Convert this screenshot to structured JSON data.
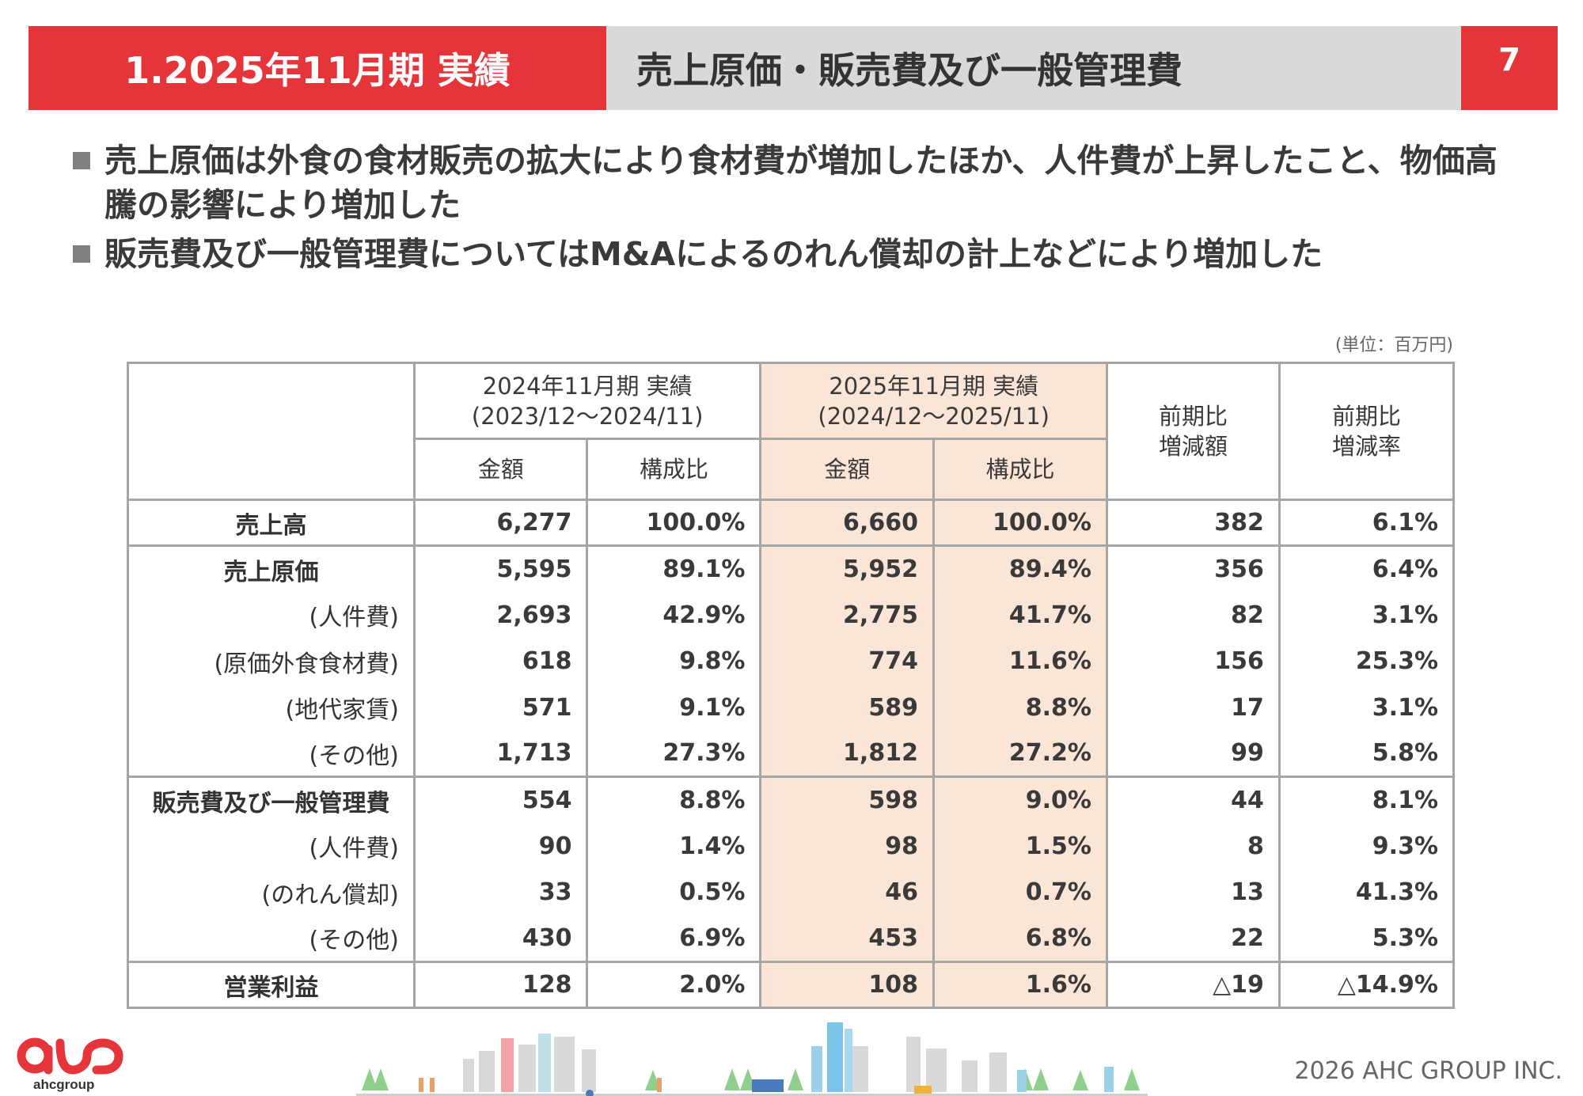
{
  "header": {
    "section": "1.2025年11月期 実績",
    "title": "売上原価・販売費及び一般管理費",
    "page_number": "7"
  },
  "bullets": [
    "売上原価は外食の食材販売の拡大により食材費が増加したほか、人件費が上昇したこと、物価高騰の影響により増加した",
    "販売費及び一般管理費についてはM&Aによるのれん償却の計上などにより増加した"
  ],
  "unit_note": "(単位：百万円)",
  "table": {
    "period_prev": {
      "line1": "2024年11月期 実績",
      "line2": "(2023/12～2024/11)"
    },
    "period_curr": {
      "line1": "2025年11月期 実績",
      "line2": "(2024/12～2025/11)"
    },
    "col_amount": "金額",
    "col_ratio": "構成比",
    "col_diff": {
      "line1": "前期比",
      "line2": "増減額"
    },
    "col_rate": {
      "line1": "前期比",
      "line2": "増減率"
    },
    "rows": [
      {
        "label": "売上高",
        "prev_amt": "6,277",
        "prev_ratio": "100.0%",
        "curr_amt": "6,660",
        "curr_ratio": "100.0%",
        "diff": "382",
        "rate": "6.1%"
      },
      {
        "label": "売上原価",
        "prev_amt": "5,595",
        "prev_ratio": "89.1%",
        "curr_amt": "5,952",
        "curr_ratio": "89.4%",
        "diff": "356",
        "rate": "6.4%"
      },
      {
        "label": "(人件費)",
        "prev_amt": "2,693",
        "prev_ratio": "42.9%",
        "curr_amt": "2,775",
        "curr_ratio": "41.7%",
        "diff": "82",
        "rate": "3.1%"
      },
      {
        "label": "(原価外食食材費)",
        "prev_amt": "618",
        "prev_ratio": "9.8%",
        "curr_amt": "774",
        "curr_ratio": "11.6%",
        "diff": "156",
        "rate": "25.3%"
      },
      {
        "label": "(地代家賃)",
        "prev_amt": "571",
        "prev_ratio": "9.1%",
        "curr_amt": "589",
        "curr_ratio": "8.8%",
        "diff": "17",
        "rate": "3.1%"
      },
      {
        "label": "(その他)",
        "prev_amt": "1,713",
        "prev_ratio": "27.3%",
        "curr_amt": "1,812",
        "curr_ratio": "27.2%",
        "diff": "99",
        "rate": "5.8%"
      },
      {
        "label": "販売費及び一般管理費",
        "prev_amt": "554",
        "prev_ratio": "8.8%",
        "curr_amt": "598",
        "curr_ratio": "9.0%",
        "diff": "44",
        "rate": "8.1%"
      },
      {
        "label": "(人件費)",
        "prev_amt": "90",
        "prev_ratio": "1.4%",
        "curr_amt": "98",
        "curr_ratio": "1.5%",
        "diff": "8",
        "rate": "9.3%"
      },
      {
        "label": "(のれん償却)",
        "prev_amt": "33",
        "prev_ratio": "0.5%",
        "curr_amt": "46",
        "curr_ratio": "0.7%",
        "diff": "13",
        "rate": "41.3%"
      },
      {
        "label": "(その他)",
        "prev_amt": "430",
        "prev_ratio": "6.9%",
        "curr_amt": "453",
        "curr_ratio": "6.8%",
        "diff": "22",
        "rate": "5.3%"
      },
      {
        "label": "営業利益",
        "prev_amt": "128",
        "prev_ratio": "2.0%",
        "curr_amt": "108",
        "curr_ratio": "1.6%",
        "diff": "△19",
        "rate": "△14.9%"
      }
    ]
  },
  "footer": {
    "logo_text": "ahcgroup",
    "copyright": "2026 AHC GROUP INC."
  },
  "colors": {
    "accent": "#e6353a",
    "header_gray": "#d9d9d9",
    "highlight": "#fbe5d6"
  }
}
